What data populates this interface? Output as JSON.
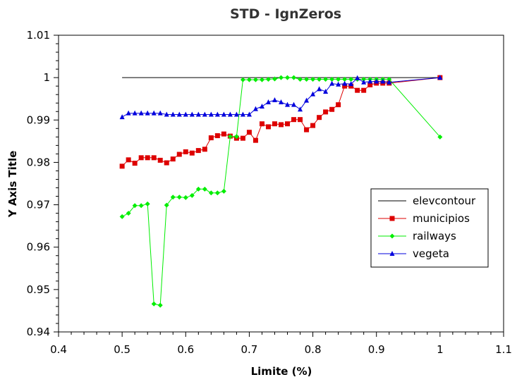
{
  "chart_data": {
    "type": "line",
    "title": "STD - IgnZeros",
    "xlabel": "Limite (%)",
    "ylabel": "Y Axis Title",
    "xlim": [
      0.4,
      1.1
    ],
    "ylim": [
      0.94,
      1.01
    ],
    "x_ticks": [
      "0.4",
      "0.5",
      "0.6",
      "0.7",
      "0.8",
      "0.9",
      "1",
      "1.1"
    ],
    "y_ticks": [
      "0.94",
      "0.95",
      "0.96",
      "0.97",
      "0.98",
      "0.99",
      "1",
      "1.01"
    ],
    "grid": false,
    "legend_position": "right",
    "series": [
      {
        "name": "elevcontour",
        "color": "#000000",
        "marker": "none",
        "x": [
          0.5,
          1.0
        ],
        "y": [
          1.0,
          1.0
        ]
      },
      {
        "name": "municipios",
        "color": "#dd0000",
        "marker": "square",
        "x": [
          0.5,
          0.51,
          0.52,
          0.53,
          0.54,
          0.55,
          0.56,
          0.57,
          0.58,
          0.59,
          0.6,
          0.61,
          0.62,
          0.63,
          0.64,
          0.65,
          0.66,
          0.67,
          0.68,
          0.69,
          0.7,
          0.71,
          0.72,
          0.73,
          0.74,
          0.75,
          0.76,
          0.77,
          0.78,
          0.79,
          0.8,
          0.81,
          0.82,
          0.83,
          0.84,
          0.85,
          0.86,
          0.87,
          0.88,
          0.89,
          0.9,
          0.91,
          0.92,
          1.0
        ],
        "y": [
          0.9791,
          0.9806,
          0.9798,
          0.9811,
          0.9811,
          0.9811,
          0.9805,
          0.9799,
          0.9808,
          0.9819,
          0.9825,
          0.9822,
          0.9828,
          0.9831,
          0.9858,
          0.9863,
          0.9867,
          0.9862,
          0.9857,
          0.9857,
          0.9871,
          0.9852,
          0.9891,
          0.9884,
          0.9891,
          0.9889,
          0.9891,
          0.9901,
          0.9901,
          0.9877,
          0.9887,
          0.9906,
          0.9919,
          0.9925,
          0.9936,
          0.998,
          0.998,
          0.997,
          0.997,
          0.9983,
          0.9987,
          0.9987,
          0.9987,
          1.0
        ]
      },
      {
        "name": "railways",
        "color": "#00ee00",
        "marker": "diamond",
        "x": [
          0.5,
          0.51,
          0.52,
          0.53,
          0.54,
          0.55,
          0.56,
          0.57,
          0.58,
          0.59,
          0.6,
          0.61,
          0.62,
          0.63,
          0.64,
          0.65,
          0.66,
          0.67,
          0.68,
          0.69,
          0.7,
          0.71,
          0.72,
          0.73,
          0.74,
          0.75,
          0.76,
          0.77,
          0.78,
          0.79,
          0.8,
          0.81,
          0.82,
          0.83,
          0.84,
          0.85,
          0.86,
          0.87,
          0.88,
          0.89,
          0.9,
          0.91,
          0.92,
          1.0
        ],
        "y": [
          0.9672,
          0.968,
          0.9698,
          0.9698,
          0.9702,
          0.9466,
          0.9463,
          0.9699,
          0.9718,
          0.9718,
          0.9717,
          0.9722,
          0.9737,
          0.9737,
          0.9728,
          0.9728,
          0.9732,
          0.9861,
          0.9861,
          0.9995,
          0.9995,
          0.9995,
          0.9995,
          0.9996,
          0.9997,
          1.0,
          1.0,
          1.0,
          0.9996,
          0.9996,
          0.9996,
          0.9996,
          0.9996,
          0.9996,
          0.9996,
          0.9996,
          0.9996,
          0.9996,
          0.9996,
          0.9996,
          0.9996,
          0.9996,
          0.9996,
          0.986
        ]
      },
      {
        "name": "vegeta",
        "color": "#0000dd",
        "marker": "triangle",
        "x": [
          0.5,
          0.51,
          0.52,
          0.53,
          0.54,
          0.55,
          0.56,
          0.57,
          0.58,
          0.59,
          0.6,
          0.61,
          0.62,
          0.63,
          0.64,
          0.65,
          0.66,
          0.67,
          0.68,
          0.69,
          0.7,
          0.71,
          0.72,
          0.73,
          0.74,
          0.75,
          0.76,
          0.77,
          0.78,
          0.79,
          0.8,
          0.81,
          0.82,
          0.83,
          0.84,
          0.85,
          0.86,
          0.87,
          0.88,
          0.89,
          0.9,
          0.91,
          0.92,
          1.0
        ],
        "y": [
          0.9907,
          0.9916,
          0.9916,
          0.9916,
          0.9916,
          0.9916,
          0.9916,
          0.9913,
          0.9913,
          0.9913,
          0.9913,
          0.9913,
          0.9913,
          0.9913,
          0.9913,
          0.9913,
          0.9913,
          0.9913,
          0.9913,
          0.9913,
          0.9913,
          0.9926,
          0.9932,
          0.9942,
          0.9947,
          0.9942,
          0.9936,
          0.9936,
          0.9925,
          0.9946,
          0.9961,
          0.9973,
          0.9967,
          0.9986,
          0.9984,
          0.9986,
          0.9985,
          0.9999,
          0.9989,
          0.9991,
          0.9991,
          0.9991,
          0.9989,
          1.0
        ]
      }
    ]
  }
}
